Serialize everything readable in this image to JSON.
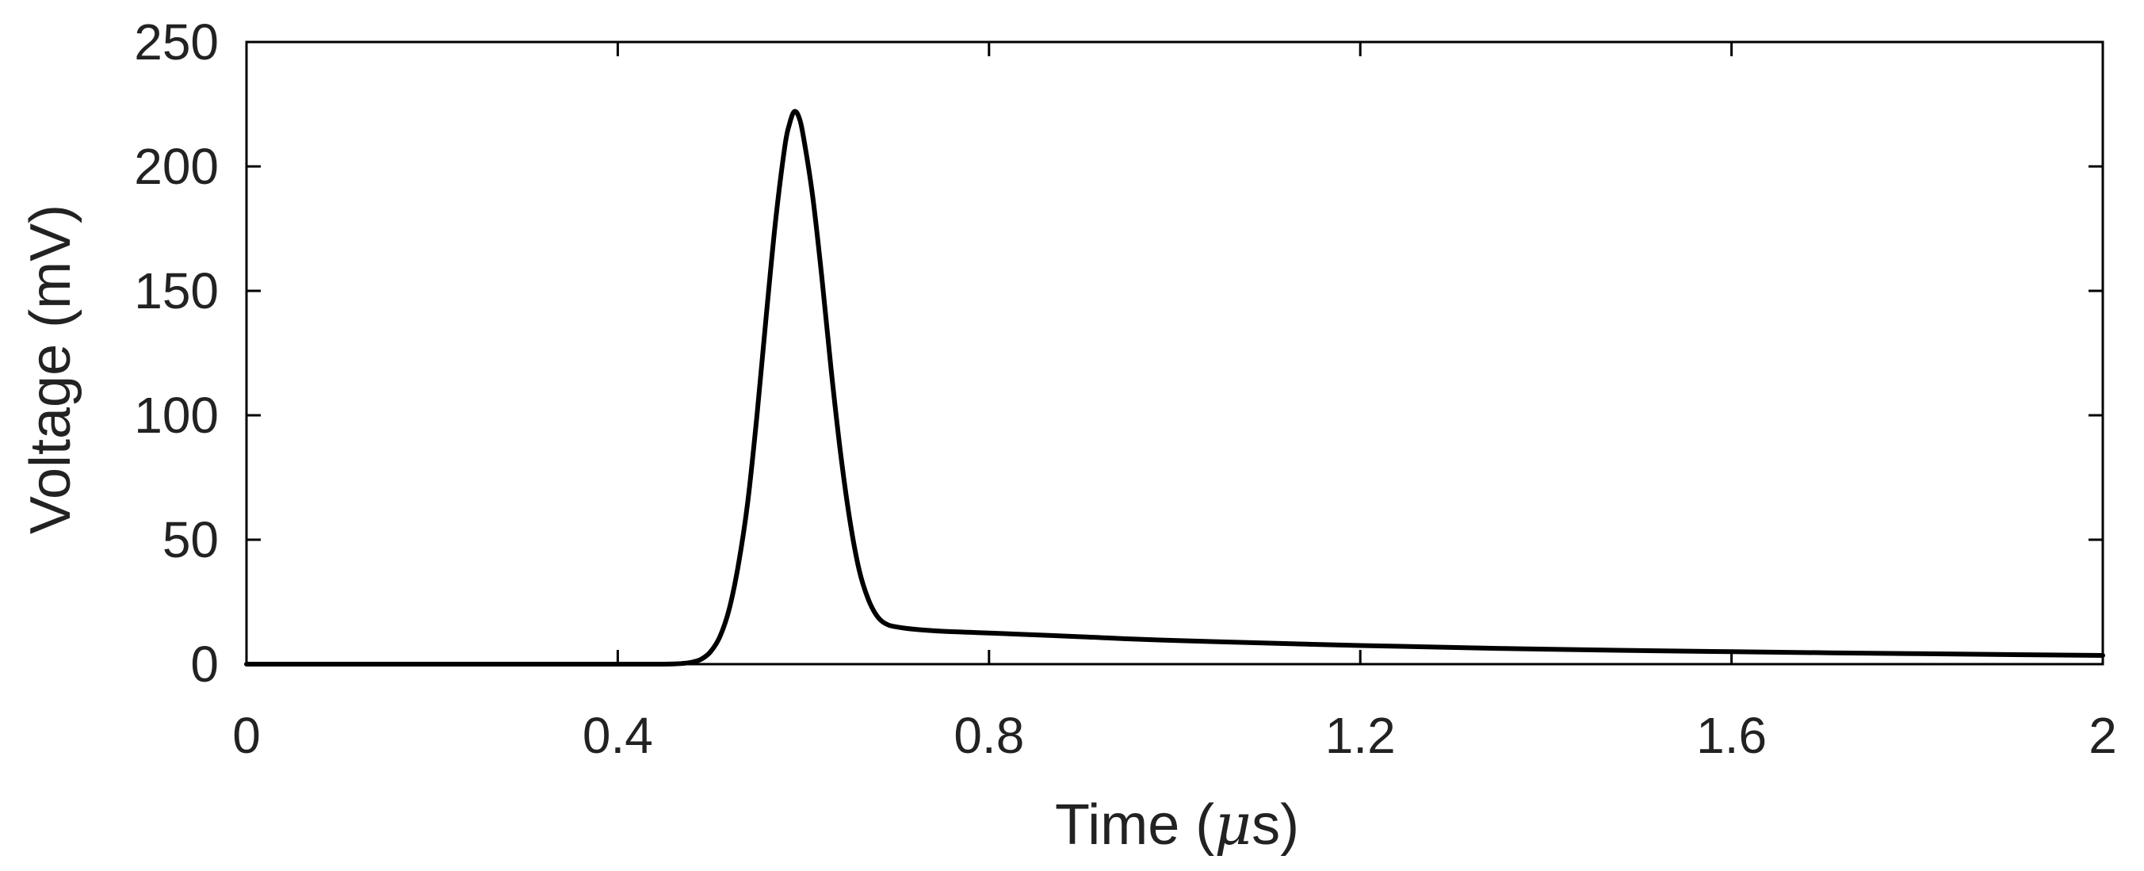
{
  "chart_data": {
    "type": "line",
    "title": "",
    "xlabel": {
      "prefix": "Time (",
      "symbol": "μ",
      "suffix": "s)"
    },
    "ylabel": "Voltage (mV)",
    "xlim": [
      0,
      2
    ],
    "ylim": [
      0,
      250
    ],
    "xticks": [
      0,
      0.4,
      0.8,
      1.2,
      1.6,
      2
    ],
    "xtick_labels": [
      "0",
      "0.4",
      "0.8",
      "1.2",
      "1.6",
      "2"
    ],
    "yticks": [
      0,
      50,
      100,
      150,
      200,
      250
    ],
    "ytick_labels": [
      "0",
      "50",
      "100",
      "150",
      "200",
      "250"
    ],
    "grid": false,
    "legend": "none",
    "line_color": "#000000",
    "series": [
      {
        "x": [
          0,
          0.1,
          0.2,
          0.3,
          0.4,
          0.44,
          0.46,
          0.47,
          0.48,
          0.49,
          0.5,
          0.51,
          0.52,
          0.53,
          0.54,
          0.55,
          0.56,
          0.57,
          0.58,
          0.585,
          0.59,
          0.595,
          0.6,
          0.61,
          0.62,
          0.63,
          0.64,
          0.65,
          0.66,
          0.67,
          0.68,
          0.69,
          0.7,
          0.72,
          0.75,
          0.8,
          0.9,
          1.0,
          1.2,
          1.4,
          1.6,
          1.8,
          2.0
        ],
        "y": [
          0,
          0,
          0,
          0,
          0,
          0,
          0.1,
          0.3,
          0.8,
          2,
          5,
          11,
          22,
          40,
          65,
          100,
          140,
          178,
          208,
          217,
          222,
          220,
          212,
          188,
          155,
          118,
          85,
          58,
          38,
          26,
          19,
          16,
          15,
          14,
          13.2,
          12.5,
          11,
          9.5,
          7.5,
          6,
          5,
          4.2,
          3.5
        ]
      }
    ]
  }
}
